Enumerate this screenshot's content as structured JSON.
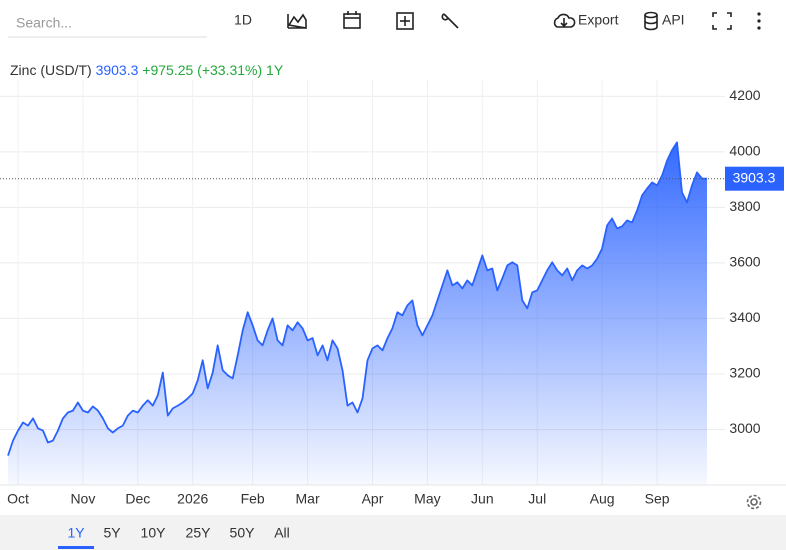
{
  "toolbar": {
    "search_placeholder": "Search...",
    "interval": "1D",
    "export": "Export",
    "api": "API"
  },
  "chart_data": {
    "type": "area",
    "title": "Zinc (USD/T)",
    "last_price": 3903.3,
    "change": "+975.25 (+33.31%)",
    "period": "1Y",
    "categories": [
      null,
      null,
      "Oct",
      null,
      null,
      null,
      null,
      null,
      null,
      null,
      null,
      null,
      null,
      null,
      null,
      "Nov",
      null,
      null,
      null,
      null,
      null,
      null,
      null,
      null,
      null,
      null,
      "Dec",
      null,
      null,
      null,
      null,
      null,
      null,
      null,
      null,
      null,
      null,
      "2026",
      null,
      null,
      null,
      null,
      null,
      null,
      null,
      null,
      null,
      null,
      null,
      "Feb",
      null,
      null,
      null,
      null,
      null,
      null,
      null,
      null,
      null,
      null,
      "Mar",
      null,
      null,
      null,
      null,
      null,
      null,
      null,
      null,
      null,
      null,
      null,
      null,
      "Apr",
      null,
      null,
      null,
      null,
      null,
      null,
      null,
      null,
      null,
      null,
      "May",
      null,
      null,
      null,
      null,
      null,
      null,
      null,
      null,
      null,
      null,
      "Jun",
      null,
      null,
      null,
      null,
      null,
      null,
      null,
      null,
      null,
      null,
      "Jul",
      null,
      null,
      null,
      null,
      null,
      null,
      null,
      null,
      null,
      null,
      null,
      null,
      "Aug",
      null,
      null,
      null,
      null,
      null,
      null,
      null,
      null,
      null,
      null,
      "Sep",
      null,
      null,
      null,
      null,
      null,
      null,
      null,
      null,
      null,
      null
    ],
    "values": [
      2906,
      2960,
      2996,
      3025,
      3014,
      3040,
      3004,
      2996,
      2953,
      2960,
      2996,
      3040,
      3061,
      3068,
      3097,
      3068,
      3061,
      3083,
      3068,
      3040,
      3004,
      2989,
      3004,
      3014,
      3050,
      3068,
      3061,
      3086,
      3105,
      3086,
      3123,
      3205,
      3050,
      3076,
      3086,
      3097,
      3112,
      3130,
      3177,
      3249,
      3148,
      3205,
      3303,
      3213,
      3195,
      3184,
      3267,
      3357,
      3422,
      3375,
      3321,
      3303,
      3357,
      3400,
      3321,
      3303,
      3375,
      3357,
      3386,
      3364,
      3321,
      3329,
      3267,
      3303,
      3249,
      3321,
      3292,
      3213,
      3086,
      3097,
      3061,
      3112,
      3249,
      3292,
      3303,
      3285,
      3329,
      3364,
      3422,
      3411,
      3447,
      3465,
      3375,
      3339,
      3375,
      3411,
      3465,
      3519,
      3573,
      3519,
      3530,
      3508,
      3537,
      3519,
      3573,
      3627,
      3573,
      3580,
      3501,
      3544,
      3591,
      3602,
      3591,
      3465,
      3436,
      3494,
      3501,
      3537,
      3573,
      3602,
      3573,
      3555,
      3580,
      3537,
      3573,
      3591,
      3580,
      3591,
      3616,
      3652,
      3735,
      3760,
      3724,
      3732,
      3753,
      3746,
      3789,
      3843,
      3868,
      3890,
      3879,
      3915,
      3969,
      4006,
      4034,
      3854,
      3818,
      3879,
      3926,
      3904,
      3903.3
    ],
    "color": "#2962ff",
    "ylim": [
      2800,
      4230
    ],
    "yticks": [
      3000,
      3200,
      3400,
      3600,
      3800,
      4000,
      4200
    ],
    "grid": true
  },
  "range_selector": {
    "options": [
      "1Y",
      "5Y",
      "10Y",
      "25Y",
      "50Y",
      "All"
    ],
    "active": 0
  }
}
